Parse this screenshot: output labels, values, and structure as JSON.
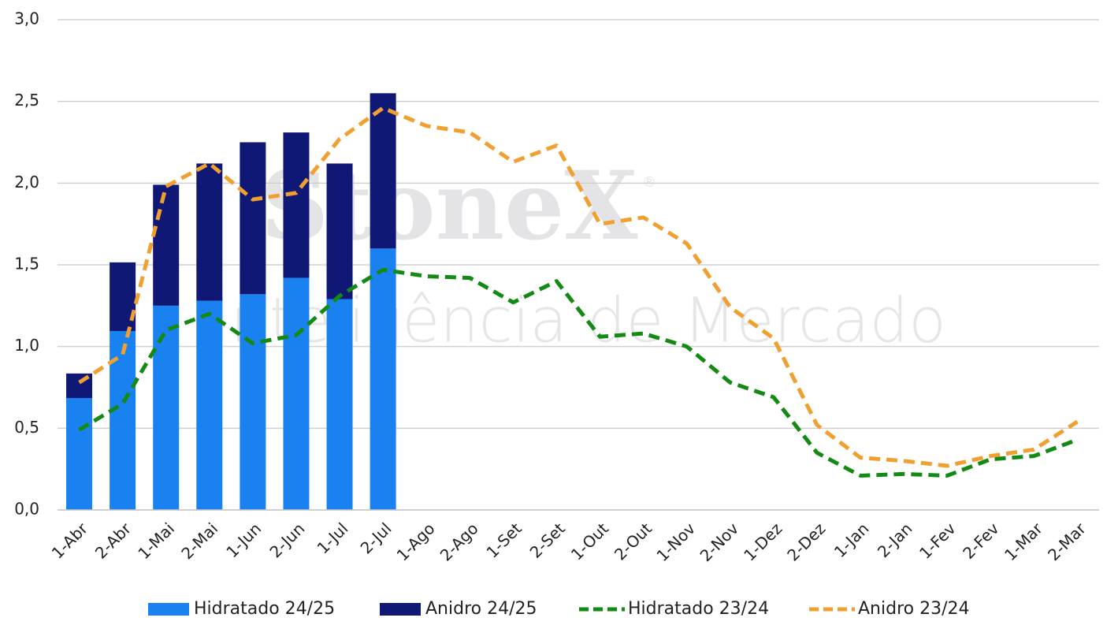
{
  "chart_data": {
    "type": "bar",
    "stacked": true,
    "watermark": {
      "brand": "StoneX",
      "mark": "®",
      "tagline": "Inteligência de Mercado"
    },
    "categories": [
      "1-Abr",
      "2-Abr",
      "1-Mai",
      "2-Mai",
      "1-Jun",
      "2-Jun",
      "1-Jul",
      "2-Jul",
      "1-Ago",
      "2-Ago",
      "1-Set",
      "2-Set",
      "1-Out",
      "2-Out",
      "1-Nov",
      "2-Nov",
      "1-Dez",
      "2-Dez",
      "1-Jan",
      "2-Jan",
      "1-Fev",
      "2-Fev",
      "1-Mar",
      "2-Mar"
    ],
    "series": [
      {
        "name": "Hidratado 24/25",
        "type": "bar",
        "color": "#1a82f0",
        "values": [
          0.685,
          1.095,
          1.25,
          1.28,
          1.32,
          1.42,
          1.29,
          1.6,
          null,
          null,
          null,
          null,
          null,
          null,
          null,
          null,
          null,
          null,
          null,
          null,
          null,
          null,
          null,
          null
        ]
      },
      {
        "name": "Anidro 24/25",
        "type": "bar",
        "color": "#101875",
        "values": [
          0.15,
          0.42,
          0.74,
          0.84,
          0.93,
          0.89,
          0.83,
          0.95,
          null,
          null,
          null,
          null,
          null,
          null,
          null,
          null,
          null,
          null,
          null,
          null,
          null,
          null,
          null,
          null
        ]
      },
      {
        "name": "Hidratado 23/24",
        "type": "line",
        "dashed": true,
        "color": "#138a13",
        "values": [
          0.49,
          0.65,
          1.1,
          1.2,
          1.02,
          1.07,
          1.31,
          1.47,
          1.43,
          1.42,
          1.27,
          1.4,
          1.06,
          1.08,
          1.0,
          0.78,
          0.69,
          0.35,
          0.21,
          0.22,
          0.21,
          0.31,
          0.33,
          0.43
        ]
      },
      {
        "name": "Anidro 23/24",
        "type": "line",
        "dashed": true,
        "color": "#f0a030",
        "values": [
          0.78,
          0.95,
          1.98,
          2.12,
          1.9,
          1.94,
          2.27,
          2.46,
          2.35,
          2.31,
          2.13,
          2.23,
          1.75,
          1.79,
          1.63,
          1.24,
          1.05,
          0.52,
          0.32,
          0.3,
          0.27,
          0.33,
          0.37,
          0.54
        ]
      }
    ],
    "ylim": [
      0,
      3
    ],
    "yticks": [
      {
        "value": 0,
        "label": "0,0"
      },
      {
        "value": 0.5,
        "label": "0,5"
      },
      {
        "value": 1,
        "label": "1,0"
      },
      {
        "value": 1.5,
        "label": "1,5"
      },
      {
        "value": 2,
        "label": "2,0"
      },
      {
        "value": 2.5,
        "label": "2,5"
      },
      {
        "value": 3,
        "label": "3,0"
      }
    ],
    "grid": true,
    "legend": "bottom"
  }
}
